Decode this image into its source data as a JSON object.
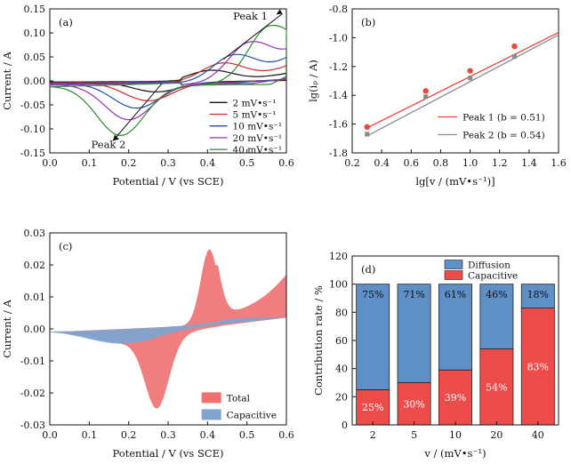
{
  "chart_data": [
    {
      "panel": "(a)",
      "type": "line",
      "xlabel": "Potential / V (vs SCE)",
      "ylabel": "Current / A",
      "xlim": [
        0.0,
        0.6
      ],
      "ylim": [
        -0.15,
        0.15
      ],
      "xticks": [
        "0.0",
        "0.1",
        "0.2",
        "0.3",
        "0.4",
        "0.5",
        "0.6"
      ],
      "yticks": [
        "-0.15",
        "-0.10",
        "-0.05",
        "0.00",
        "0.05",
        "0.10",
        "0.15"
      ],
      "legend_position": "bottom-right",
      "annotations": [
        "Peak 1",
        "Peak 2"
      ],
      "series": [
        {
          "name": "2 mV•s⁻¹",
          "color": "#111111",
          "peak_pos": 0.41,
          "ipa": 0.024,
          "peak_neg": 0.27,
          "ipc": -0.021,
          "tail_pos": 0.016
        },
        {
          "name": "5 mV•s⁻¹",
          "color": "#d42a2a",
          "peak_pos": 0.44,
          "ipa": 0.04,
          "peak_neg": 0.25,
          "ipc": -0.038,
          "tail_pos": 0.032
        },
        {
          "name": "10 mV•s⁻¹",
          "color": "#1f4fae",
          "peak_pos": 0.47,
          "ipa": 0.058,
          "peak_neg": 0.22,
          "ipc": -0.052,
          "tail_pos": 0.05
        },
        {
          "name": "20 mV•s⁻¹",
          "color": "#9b2fb5",
          "peak_pos": 0.51,
          "ipa": 0.085,
          "peak_neg": 0.2,
          "ipc": -0.074,
          "tail_pos": 0.068
        },
        {
          "name": "40 mV•s⁻¹",
          "color": "#2e8b2e",
          "peak_pos": 0.56,
          "ipa": 0.118,
          "peak_neg": 0.18,
          "ipc": -0.104,
          "tail_pos": 0.108
        }
      ]
    },
    {
      "panel": "(b)",
      "type": "scatter",
      "xlabel": "lg[v / (mV•s⁻¹)]",
      "ylabel": "lg(iₚ / A)",
      "xlim": [
        0.2,
        1.6
      ],
      "ylim": [
        -1.8,
        -0.8
      ],
      "xticks": [
        "0.2",
        "0.4",
        "0.6",
        "0.8",
        "1.0",
        "1.2",
        "1.4",
        "1.6"
      ],
      "yticks": [
        "-1.8",
        "-1.6",
        "-1.4",
        "-1.2",
        "-1.0",
        "-0.8"
      ],
      "legend_position": "bottom-right",
      "series": [
        {
          "name": "Peak 1 (b = 0.51)",
          "color": "#e8493b",
          "marker": "circle",
          "x": [
            0.301,
            0.699,
            1.0,
            1.301
          ],
          "y": [
            -1.62,
            -1.37,
            -1.23,
            -1.06
          ],
          "fit": {
            "slope": 0.51,
            "intercept": -1.78
          }
        },
        {
          "name": "Peak 2 (b = 0.54)",
          "color": "#8c8c8c",
          "marker": "square",
          "x": [
            0.301,
            0.699,
            1.0,
            1.301
          ],
          "y": [
            -1.67,
            -1.41,
            -1.28,
            -1.13
          ],
          "fit": {
            "slope": 0.54,
            "intercept": -1.845
          }
        }
      ]
    },
    {
      "panel": "(c)",
      "type": "area",
      "xlabel": "Potential / V (vs SCE)",
      "ylabel": "Current / A",
      "xlim": [
        0.0,
        0.6
      ],
      "ylim": [
        -0.03,
        0.03
      ],
      "xticks": [
        "0.0",
        "0.1",
        "0.2",
        "0.3",
        "0.4",
        "0.5",
        "0.6"
      ],
      "yticks": [
        "-0.03",
        "-0.02",
        "-0.01",
        "0.00",
        "0.01",
        "0.02",
        "0.03"
      ],
      "legend_position": "bottom-right",
      "series": [
        {
          "name": "Total",
          "color": "#f07070"
        },
        {
          "name": "Capacitive",
          "color": "#7ea4cf"
        }
      ]
    },
    {
      "panel": "(d)",
      "type": "bar",
      "stacked": true,
      "xlabel": "v / (mV•s⁻¹)",
      "ylabel": "Contribution rate / %",
      "ylim": [
        0,
        120
      ],
      "yticks": [
        "0",
        "20",
        "40",
        "60",
        "80",
        "100",
        "120"
      ],
      "categories": [
        "2",
        "5",
        "10",
        "20",
        "40"
      ],
      "legend_position": "top-center",
      "series": [
        {
          "name": "Capacitive",
          "color": "#ee4b4b",
          "values": [
            25,
            30,
            39,
            54,
            83
          ],
          "labels": [
            "25%",
            "30%",
            "39%",
            "54%",
            "83%"
          ]
        },
        {
          "name": "Diffusion",
          "color": "#5e8fc7",
          "values": [
            75,
            71,
            61,
            46,
            18
          ],
          "labels": [
            "75%",
            "71%",
            "61%",
            "46%",
            "18%"
          ]
        }
      ]
    }
  ]
}
